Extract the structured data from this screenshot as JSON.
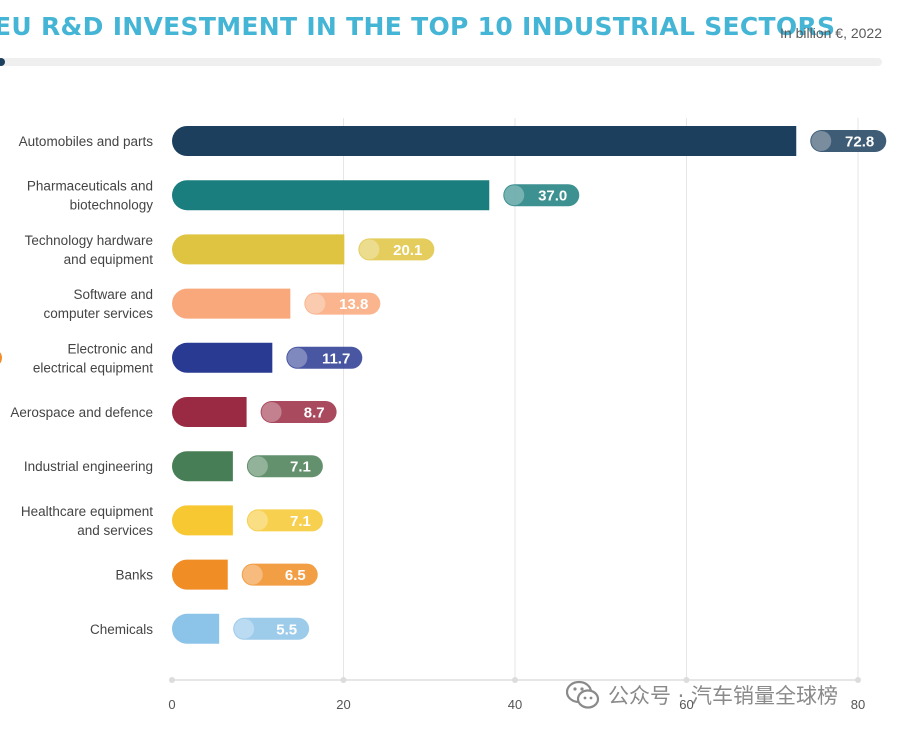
{
  "chart_data": {
    "type": "bar",
    "orientation": "horizontal",
    "title": "EU R&D INVESTMENT IN THE TOP 10 INDUSTRIAL SECTORS",
    "subtitle": "In billion €, 2022",
    "xlabel": "",
    "ylabel": "",
    "xlim": [
      0,
      80
    ],
    "xticks": [
      0,
      20,
      40,
      60,
      80
    ],
    "grid": true,
    "categories": [
      [
        "Automobiles and parts"
      ],
      [
        "Pharmaceuticals and",
        "biotechnology"
      ],
      [
        "Technology hardware",
        "and equipment"
      ],
      [
        "Software and",
        "computer services"
      ],
      [
        "Electronic and",
        "electrical equipment"
      ],
      [
        "Aerospace and defence"
      ],
      [
        "Industrial engineering"
      ],
      [
        "Healthcare equipment",
        "and services"
      ],
      [
        "Banks"
      ],
      [
        "Chemicals"
      ]
    ],
    "values": [
      72.8,
      37.0,
      20.1,
      13.8,
      11.7,
      8.7,
      7.1,
      7.1,
      6.5,
      5.5
    ],
    "value_labels": [
      "72.8",
      "37.0",
      "20.1",
      "13.8",
      "11.7",
      "8.7",
      "7.1",
      "7.1",
      "6.5",
      "5.5"
    ],
    "colors": [
      "#1d3f5e",
      "#1b7e7e",
      "#dfc441",
      "#f9a87b",
      "#293a92",
      "#9a2a43",
      "#487e55",
      "#f7c831",
      "#f08d24",
      "#8cc3e8"
    ]
  },
  "colors": {
    "title": "#45b5d6",
    "grid": "#e6e6e6"
  },
  "watermark": {
    "text": "公众号 · 汽车销量全球榜",
    "icon": "wechat-icon"
  }
}
